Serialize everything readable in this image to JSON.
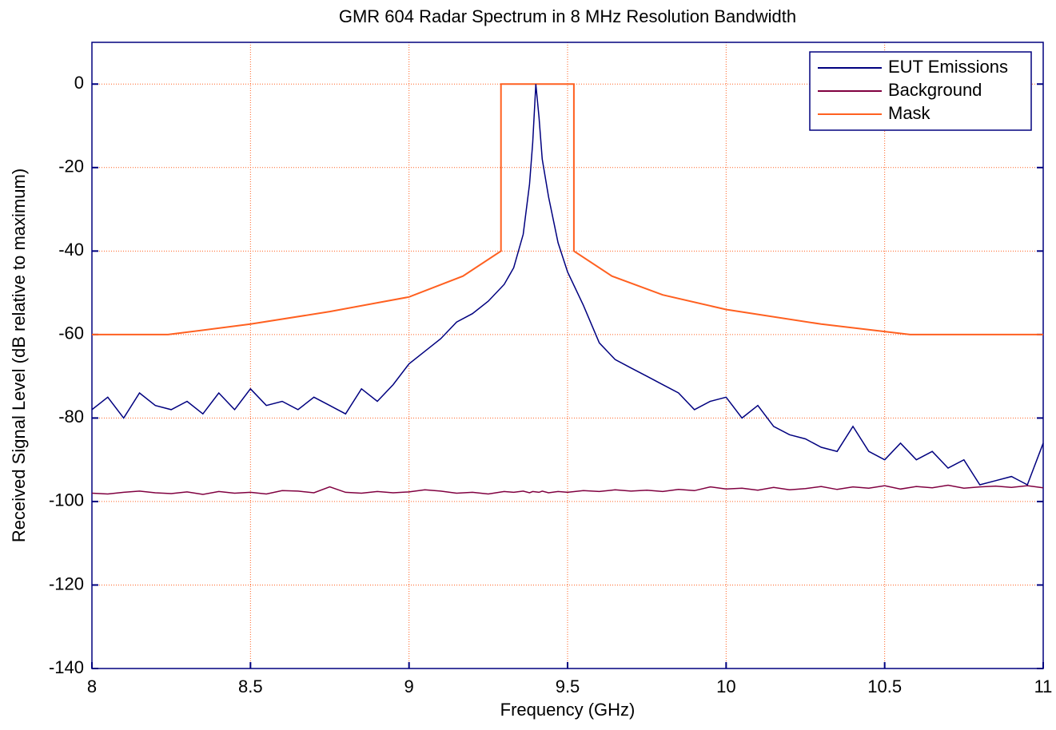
{
  "chart_data": {
    "type": "line",
    "title": "GMR 604 Radar Spectrum in 8 MHz Resolution Bandwidth",
    "xlabel": "Frequency (GHz)",
    "ylabel": "Received Signal Level (dB relative to maximum)",
    "x": [
      8.0,
      8.05,
      8.1,
      8.15,
      8.2,
      8.25,
      8.3,
      8.35,
      8.4,
      8.45,
      8.5,
      8.55,
      8.6,
      8.65,
      8.7,
      8.75,
      8.8,
      8.85,
      8.9,
      8.95,
      9.0,
      9.05,
      9.1,
      9.15,
      9.2,
      9.25,
      9.3,
      9.33,
      9.36,
      9.38,
      9.39,
      9.4,
      9.41,
      9.42,
      9.44,
      9.47,
      9.5,
      9.55,
      9.6,
      9.65,
      9.7,
      9.75,
      9.8,
      9.85,
      9.9,
      9.95,
      10.0,
      10.05,
      10.1,
      10.15,
      10.2,
      10.25,
      10.3,
      10.35,
      10.4,
      10.45,
      10.5,
      10.55,
      10.6,
      10.65,
      10.7,
      10.75,
      10.8,
      10.85,
      10.9,
      10.95,
      11.0
    ],
    "series": [
      {
        "name": "EUT Emissions",
        "color": "#00007f",
        "values": [
          -78,
          -75,
          -80,
          -74,
          -77,
          -78,
          -76,
          -79,
          -74,
          -78,
          -73,
          -77,
          -76,
          -78,
          -75,
          -77,
          -79,
          -73,
          -76,
          -72,
          -67,
          -64,
          -61,
          -57,
          -55,
          -52,
          -48,
          -44,
          -36,
          -24,
          -14,
          0,
          -8,
          -18,
          -27,
          -38,
          -45,
          -53,
          -62,
          -66,
          -68,
          -70,
          -72,
          -74,
          -78,
          -76,
          -75,
          -80,
          -77,
          -82,
          -84,
          -85,
          -87,
          -88,
          -82,
          -88,
          -90,
          -86,
          -90,
          -88,
          -92,
          -90,
          -96,
          -95,
          -94,
          -96,
          -86
        ]
      },
      {
        "name": "Background",
        "color": "#800040",
        "values": [
          -98,
          -98.2,
          -97.8,
          -97.5,
          -97.9,
          -98.1,
          -97.7,
          -98.3,
          -97.6,
          -98,
          -97.8,
          -98.2,
          -97.4,
          -97.5,
          -97.9,
          -96.5,
          -97.8,
          -98,
          -97.6,
          -97.9,
          -97.7,
          -97.2,
          -97.5,
          -98,
          -97.8,
          -98.2,
          -97.6,
          -97.8,
          -97.5,
          -97.9,
          -97.6,
          -97.7,
          -97.8,
          -97.5,
          -97.9,
          -97.6,
          -97.8,
          -97.4,
          -97.6,
          -97.2,
          -97.5,
          -97.3,
          -97.6,
          -97.1,
          -97.4,
          -96.5,
          -97,
          -96.8,
          -97.3,
          -96.6,
          -97.2,
          -96.9,
          -96.4,
          -97.1,
          -96.5,
          -96.8,
          -96.2,
          -97,
          -96.4,
          -96.7,
          -96.1,
          -96.8,
          -96.5,
          -96.3,
          -96.6,
          -96.2,
          -96.7
        ]
      },
      {
        "name": "Mask",
        "color": "#ff6020",
        "x": [
          8,
          8.24,
          8.5,
          8.75,
          9.0,
          9.17,
          9.29,
          9.29,
          9.52,
          9.52,
          9.64,
          9.8,
          10.0,
          10.3,
          10.58,
          11
        ],
        "values": [
          -60,
          -60,
          -57.5,
          -54.5,
          -51,
          -46,
          -40,
          0,
          0,
          -40,
          -46,
          -50.5,
          -54,
          -57.5,
          -60,
          -60
        ]
      }
    ],
    "xlim": [
      8,
      11
    ],
    "xticks": [
      8,
      8.5,
      9,
      9.5,
      10,
      10.5,
      11
    ],
    "ylim": [
      -140,
      10
    ],
    "yticks": [
      0,
      -20,
      -40,
      -60,
      -80,
      -100,
      -120,
      -140
    ],
    "grid": true,
    "grid_color": "#ff6020",
    "legend": "upper right"
  }
}
